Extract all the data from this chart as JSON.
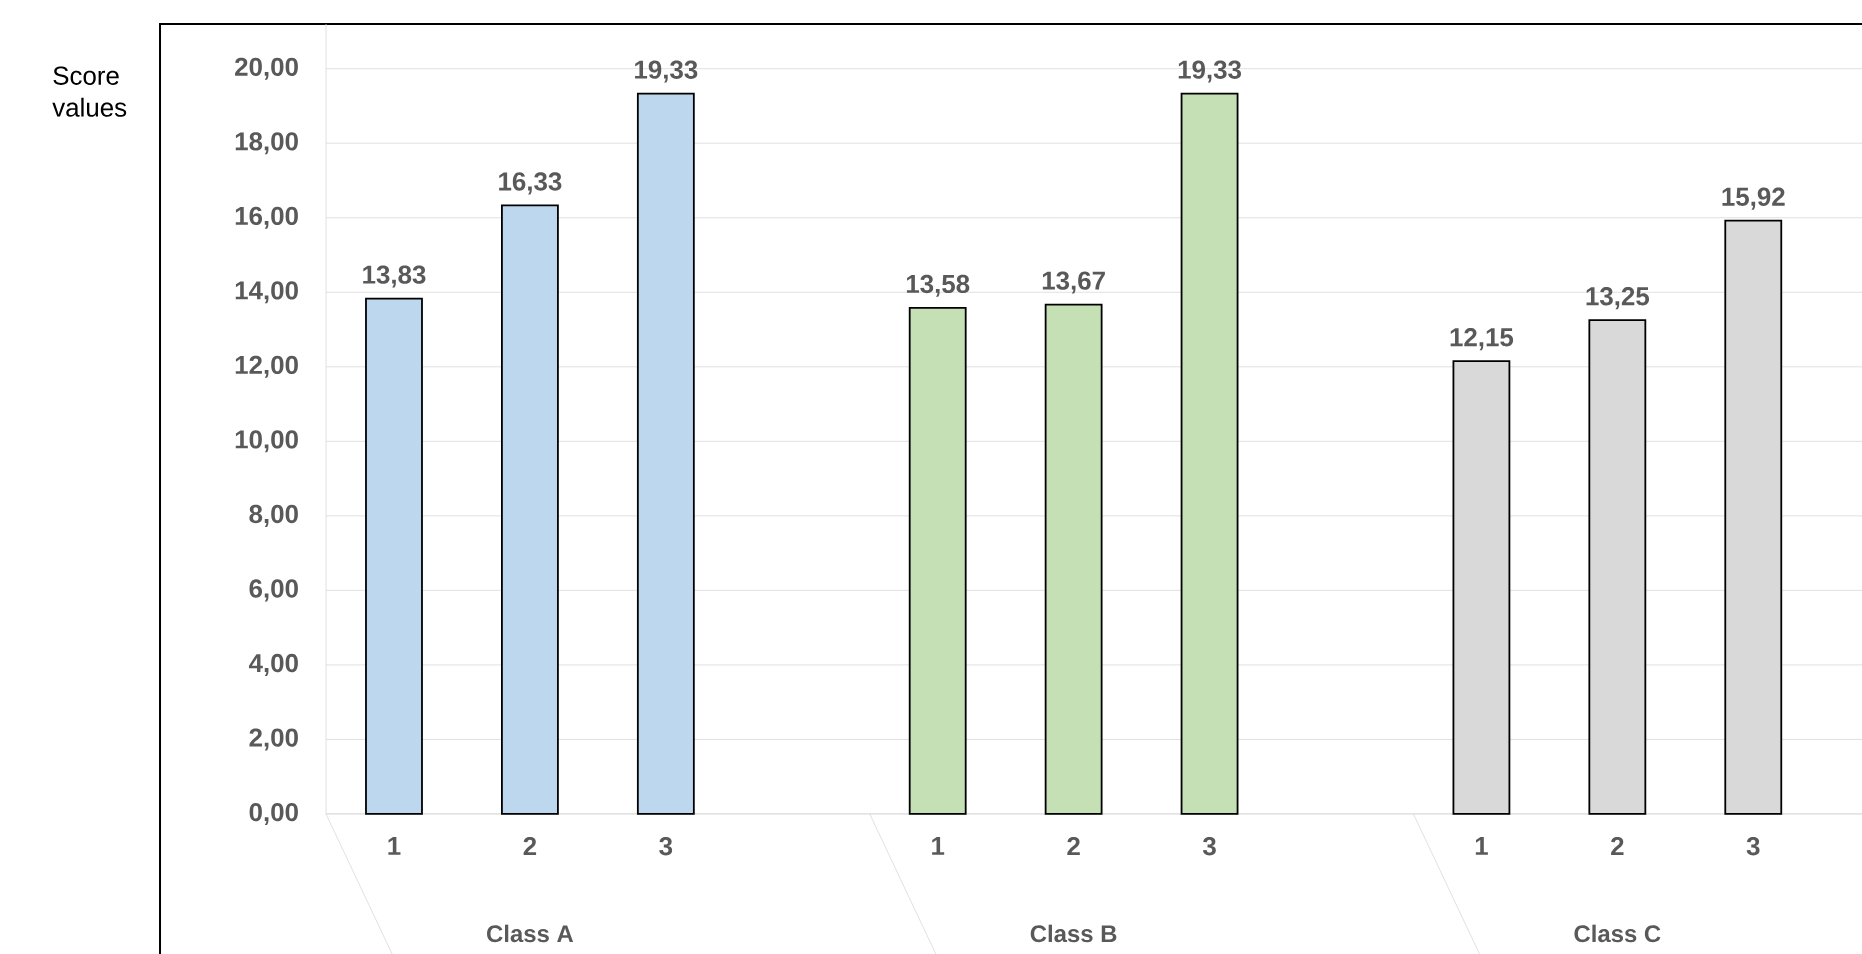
{
  "chart_data": {
    "type": "bar",
    "ylabel": "Score values",
    "categories": [
      "1",
      "2",
      "3",
      "1",
      "2",
      "3",
      "1",
      "2",
      "3"
    ],
    "values": [
      13.83,
      16.33,
      19.33,
      13.58,
      13.67,
      19.33,
      12.15,
      13.25,
      15.92
    ],
    "colors": [
      "#bdd7ee",
      "#bdd7ee",
      "#bdd7ee",
      "#c5e0b4",
      "#c5e0b4",
      "#c5e0b4",
      "#d9d9d9",
      "#d9d9d9",
      "#d9d9d9"
    ],
    "value_labels": [
      "13,83",
      "16,33",
      "19,33",
      "13,58",
      "13,67",
      "19,33",
      "12,15",
      "13,25",
      "15,92"
    ],
    "ylim": [
      0,
      21.2
    ],
    "yticks": [
      {
        "value": 0,
        "label": "0,00"
      },
      {
        "value": 2,
        "label": "2,00"
      },
      {
        "value": 4,
        "label": "4,00"
      },
      {
        "value": 6,
        "label": "6,00"
      },
      {
        "value": 8,
        "label": "8,00"
      },
      {
        "value": 10,
        "label": "10,00"
      },
      {
        "value": 12,
        "label": "12,00"
      },
      {
        "value": 14,
        "label": "14,00"
      },
      {
        "value": 16,
        "label": "16,00"
      },
      {
        "value": 18,
        "label": "18,00"
      },
      {
        "value": 20,
        "label": "20,00"
      }
    ],
    "grid": "y",
    "annotations": [
      "Class A",
      "Class B",
      "Class C"
    ]
  }
}
